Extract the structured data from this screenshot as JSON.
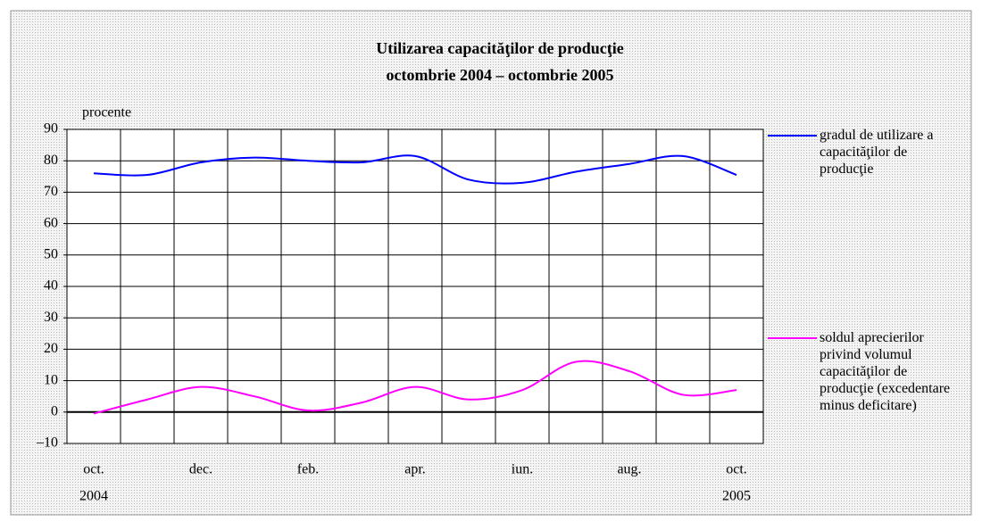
{
  "chart_data": {
    "type": "line",
    "title": "Utilizarea capacităţilor de producţie",
    "subtitle": "octombrie 2004 – octombrie 2005",
    "y_label": "procente",
    "categories": [
      "oct.",
      null,
      "dec.",
      null,
      "feb.",
      null,
      "apr.",
      null,
      "iun.",
      null,
      "aug.",
      null,
      "oct."
    ],
    "category_years": [
      "2004",
      null,
      null,
      null,
      null,
      null,
      null,
      null,
      null,
      null,
      null,
      null,
      "2005"
    ],
    "series": [
      {
        "name": "gradul de utilizare a capacităţilor de producţie",
        "color": "#0000ff",
        "values": [
          76,
          75.5,
          79.5,
          81,
          80,
          79.5,
          81.5,
          74,
          73,
          76.5,
          79,
          81.5,
          75.5
        ]
      },
      {
        "name": "soldul aprecierilor privind volumul capacităţilor de producţie (excedentare minus deficitare)",
        "color": "#ff00ff",
        "values": [
          -0.5,
          4,
          8,
          5,
          0.5,
          3,
          8,
          4,
          7,
          16,
          13,
          5.5,
          7
        ]
      }
    ],
    "ylim": [
      -10,
      90
    ],
    "yticks": [
      {
        "value": -10,
        "label": "–10"
      },
      0,
      10,
      20,
      30,
      40,
      50,
      60,
      70,
      80,
      90
    ],
    "grid": true,
    "smooth": true
  }
}
